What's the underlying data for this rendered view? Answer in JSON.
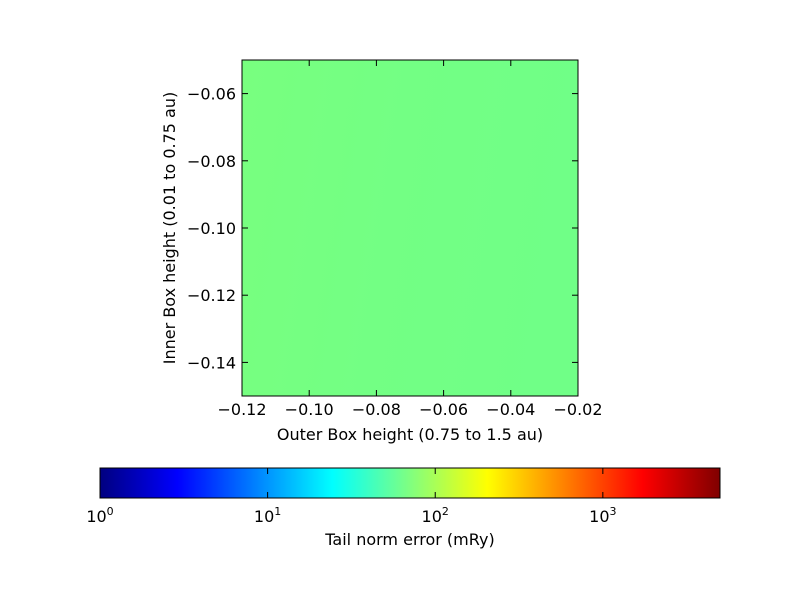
{
  "chart_data": {
    "type": "heatmap",
    "xlabel": "Outer Box height (0.75 to 1.5 au)",
    "ylabel": "Inner Box height (0.01 to 0.75 au)",
    "xlim": [
      -0.12,
      -0.02
    ],
    "ylim": [
      -0.15,
      -0.05
    ],
    "x_ticks": [
      -0.12,
      -0.1,
      -0.08,
      -0.06,
      -0.04,
      -0.02
    ],
    "x_tick_labels": [
      "−0.12",
      "−0.10",
      "−0.08",
      "−0.06",
      "−0.04",
      "−0.02"
    ],
    "y_ticks": [
      -0.06,
      -0.08,
      -0.1,
      -0.12,
      -0.14
    ],
    "y_tick_labels": [
      "−0.06",
      "−0.08",
      "−0.10",
      "−0.12",
      "−0.14"
    ],
    "field_colors": [
      "#78ff7f",
      "#73ff84",
      "#70ff87"
    ],
    "field_value_approx": 70,
    "colorbar": {
      "label": "Tail norm error (mRy)",
      "scale": "log",
      "range": [
        1,
        5000
      ],
      "orientation": "horizontal",
      "colormap": "jet",
      "ticks": [
        {
          "value": 1,
          "base": "10",
          "exp": "0"
        },
        {
          "value": 10,
          "base": "10",
          "exp": "1"
        },
        {
          "value": 100,
          "base": "10",
          "exp": "2"
        },
        {
          "value": 1000,
          "base": "10",
          "exp": "3"
        }
      ],
      "colors": [
        "#000080",
        "#0000ff",
        "#0080ff",
        "#00ffff",
        "#80ff80",
        "#ffff00",
        "#ff8000",
        "#ff0000",
        "#800000"
      ]
    }
  }
}
